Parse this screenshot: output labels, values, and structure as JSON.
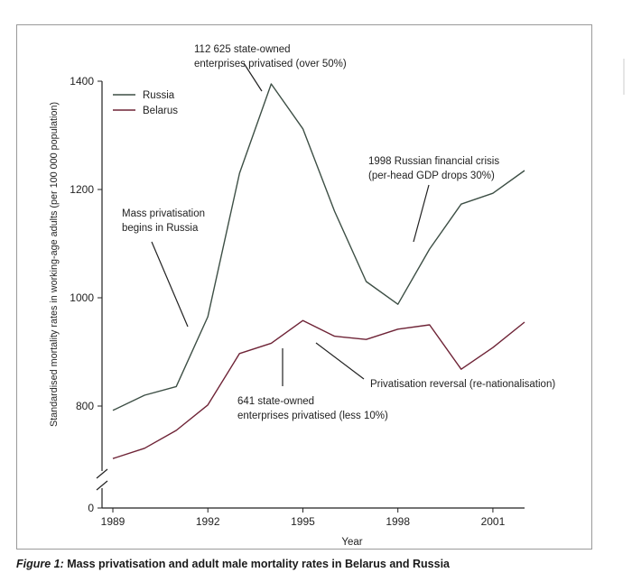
{
  "chart_data": {
    "type": "line",
    "xlabel": "Year",
    "ylabel": "Standardised mortality rates in working-age adults (per 100 000 population)",
    "x_ticks": [
      1989,
      1992,
      1995,
      1998,
      2001
    ],
    "y_ticks": [
      800,
      1000,
      1200,
      1400
    ],
    "y_zero_label": "0",
    "axis_break": true,
    "xlim": [
      1989,
      2002
    ],
    "ylim": [
      700,
      1400
    ],
    "legend_position": "top-left",
    "x": [
      1989,
      1990,
      1991,
      1992,
      1993,
      1994,
      1995,
      1996,
      1997,
      1998,
      1999,
      2000,
      2001,
      2002
    ],
    "series": [
      {
        "name": "Russia",
        "color": "#3d4f45",
        "values": [
          792,
          820,
          836,
          965,
          1230,
          1395,
          1312,
          1160,
          1030,
          988,
          1090,
          1173,
          1193,
          1235
        ]
      },
      {
        "name": "Belarus",
        "color": "#6e2336",
        "values": [
          703,
          722,
          755,
          802,
          897,
          916,
          958,
          929,
          923,
          942,
          950,
          868,
          908,
          955
        ]
      }
    ],
    "annotations": [
      {
        "id": "peak",
        "lines": [
          "112 625 state-owned",
          "enterprises privatised (over 50%)"
        ]
      },
      {
        "id": "crisis",
        "lines": [
          "1998 Russian financial crisis",
          "(per-head GDP drops 30%)"
        ]
      },
      {
        "id": "mass",
        "lines": [
          "Mass privatisation",
          "begins in Russia"
        ]
      },
      {
        "id": "reversal",
        "lines": [
          "Privatisation reversal (re-nationalisation)"
        ]
      },
      {
        "id": "belarus",
        "lines": [
          "641 state-owned",
          "enterprises privatised (less 10%)"
        ]
      }
    ]
  },
  "caption": {
    "label": "Figure 1:",
    "text": " Mass privatisation and adult male mortality rates in Belarus and Russia"
  }
}
